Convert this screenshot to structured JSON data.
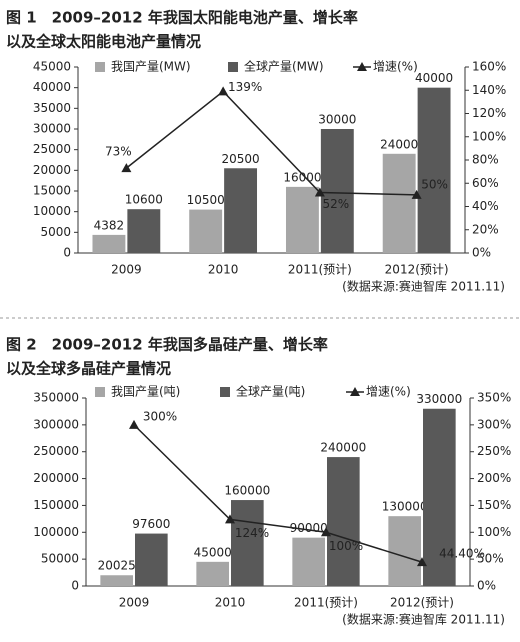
{
  "chart_data": [
    {
      "type": "bar",
      "title": [
        "图 1　2009–2012 年我国太阳能电池产量、增长率",
        "以及全球太阳能电池产量情况"
      ],
      "categories": [
        "2009",
        "2010",
        "2011(预计)",
        "2012(预计)"
      ],
      "series": [
        {
          "name": "我国产量(MW)",
          "color": "#a6a6a6",
          "values": [
            4382,
            10500,
            16000,
            24000
          ]
        },
        {
          "name": "全球产量(MW)",
          "color": "#595959",
          "values": [
            10600,
            20500,
            30000,
            40000
          ]
        },
        {
          "name": "增速(%)",
          "type": "line",
          "axis": "y2",
          "color": "#222222",
          "values": [
            73,
            139,
            52,
            50
          ],
          "value_labels": [
            "73%",
            "139%",
            "52%",
            "50%"
          ]
        }
      ],
      "ylim": [
        0,
        45000
      ],
      "yticks": [
        0,
        5000,
        10000,
        15000,
        20000,
        25000,
        30000,
        35000,
        40000,
        45000
      ],
      "y2lim": [
        0,
        160
      ],
      "y2ticks": [
        {
          "value": 0,
          "label": "0%"
        },
        {
          "value": 20,
          "label": "20%"
        },
        {
          "value": 40,
          "label": "40%"
        },
        {
          "value": 60,
          "label": "60%"
        },
        {
          "value": 80,
          "label": "80%"
        },
        {
          "value": 100,
          "label": "100%"
        },
        {
          "value": 120,
          "label": "120%"
        },
        {
          "value": 140,
          "label": "140%"
        },
        {
          "value": 160,
          "label": "160%"
        }
      ],
      "source": "(数据来源:赛迪智库 2011.11)"
    },
    {
      "type": "bar",
      "title": [
        "图 2　2009–2012 年我国多晶硅产量、增长率",
        "以及全球多晶硅产量情况"
      ],
      "categories": [
        "2009",
        "2010",
        "2011(预计)",
        "2012(预计)"
      ],
      "series": [
        {
          "name": "我国产量(吨)",
          "color": "#a6a6a6",
          "values": [
            20025,
            45000,
            90000,
            130000
          ]
        },
        {
          "name": "全球产量(吨)",
          "color": "#595959",
          "values": [
            97600,
            160000,
            240000,
            330000
          ]
        },
        {
          "name": "增速(%)",
          "type": "line",
          "axis": "y2",
          "color": "#222222",
          "values": [
            300,
            124,
            100,
            44.4
          ],
          "value_labels": [
            "300%",
            "124%",
            "100%",
            "44.40%"
          ]
        }
      ],
      "ylim": [
        0,
        350000
      ],
      "yticks": [
        0,
        50000,
        100000,
        150000,
        200000,
        250000,
        300000,
        350000
      ],
      "y2lim": [
        0,
        350
      ],
      "y2ticks": [
        {
          "value": 0,
          "label": "0%"
        },
        {
          "value": 50,
          "label": "50%"
        },
        {
          "value": 100,
          "label": "100%"
        },
        {
          "value": 150,
          "label": "150%"
        },
        {
          "value": 200,
          "label": "200%"
        },
        {
          "value": 250,
          "label": "250%"
        },
        {
          "value": 300,
          "label": "300%"
        },
        {
          "value": 350,
          "label": "350%"
        }
      ],
      "source": "(数据来源:赛迪智库 2011.11)"
    }
  ]
}
